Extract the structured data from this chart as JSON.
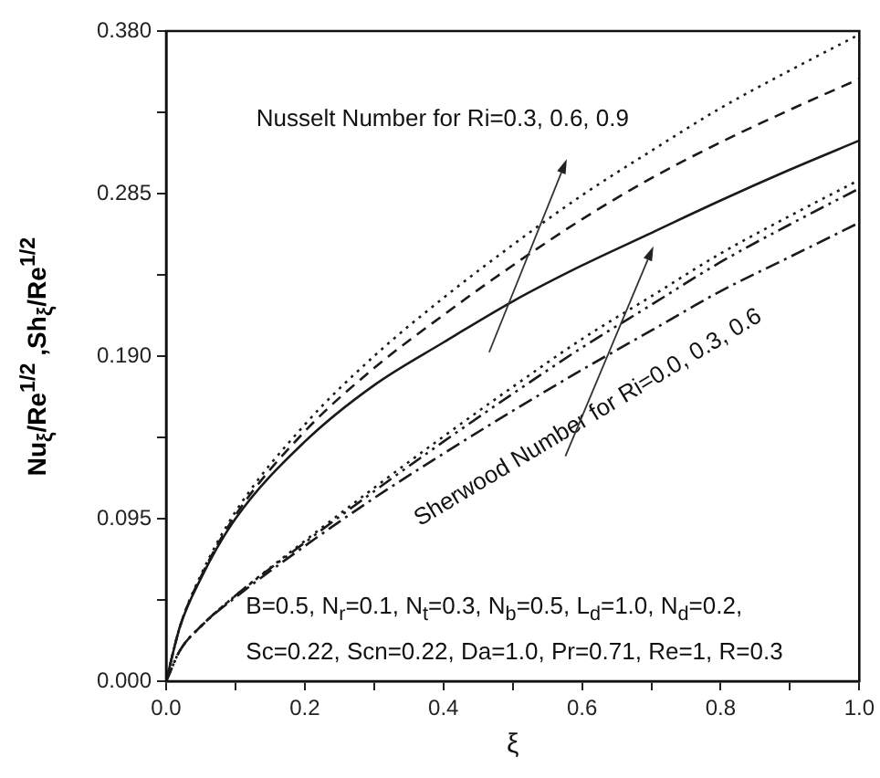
{
  "chart_data": {
    "type": "line",
    "xlabel": "ξ",
    "ylabel": "Nu$_{ξ}$/Re$^{1/2}$ ,Sh$_{ξ}$/Re$^{1/2}$",
    "x": [
      0,
      0.02,
      0.05,
      0.1,
      0.2,
      0.3,
      0.4,
      0.5,
      0.6,
      0.7,
      0.8,
      0.9,
      1.0
    ],
    "series": [
      {
        "color": "#1a1a1a",
        "line_style": "solid",
        "values": [
          0,
          0.032,
          0.06,
          0.095,
          0.14,
          0.173,
          0.198,
          0.222,
          0.243,
          0.262,
          0.281,
          0.299,
          0.316
        ]
      },
      {
        "color": "#1a1a1a",
        "line_style": "dashed",
        "values": [
          0,
          0.032,
          0.061,
          0.097,
          0.146,
          0.183,
          0.214,
          0.243,
          0.27,
          0.294,
          0.315,
          0.334,
          0.352
        ]
      },
      {
        "color": "#1a1a1a",
        "line_style": "dotted",
        "values": [
          0,
          0.032,
          0.062,
          0.099,
          0.15,
          0.19,
          0.224,
          0.255,
          0.284,
          0.31,
          0.335,
          0.357,
          0.378
        ]
      },
      {
        "color": "#1a1a1a",
        "line_style": "dotted",
        "values": [
          0,
          0.018,
          0.032,
          0.05,
          0.082,
          0.113,
          0.143,
          0.172,
          0.2,
          0.225,
          0.25,
          0.272,
          0.293
        ]
      },
      {
        "color": "#1a1a1a",
        "line_style": "dashdotdot",
        "values": [
          0,
          0.018,
          0.032,
          0.05,
          0.081,
          0.111,
          0.14,
          0.168,
          0.195,
          0.22,
          0.245,
          0.267,
          0.288
        ]
      },
      {
        "color": "#1a1a1a",
        "line_style": "dashdot",
        "values": [
          0,
          0.018,
          0.032,
          0.049,
          0.079,
          0.107,
          0.133,
          0.158,
          0.182,
          0.205,
          0.228,
          0.248,
          0.268
        ]
      }
    ],
    "xlim": [
      0,
      1.0
    ],
    "xticks": [
      {
        "value": 0,
        "label": "0.0"
      },
      {
        "value": 0.1,
        "label": null
      },
      {
        "value": 0.2,
        "label": "0.2"
      },
      {
        "value": 0.3,
        "label": null
      },
      {
        "value": 0.4,
        "label": "0.4"
      },
      {
        "value": 0.5,
        "label": null
      },
      {
        "value": 0.6,
        "label": "0.6"
      },
      {
        "value": 0.7,
        "label": null
      },
      {
        "value": 0.8,
        "label": "0.8"
      },
      {
        "value": 0.9,
        "label": null
      },
      {
        "value": 1.0,
        "label": "1.0"
      }
    ],
    "ylim": [
      0,
      0.38
    ],
    "yticks": [
      {
        "value": 0,
        "label": "0.000"
      },
      {
        "value": 0.0475,
        "label": null
      },
      {
        "value": 0.095,
        "label": "0.095"
      },
      {
        "value": 0.1425,
        "label": null
      },
      {
        "value": 0.19,
        "label": "0.190"
      },
      {
        "value": 0.2375,
        "label": null
      },
      {
        "value": 0.285,
        "label": "0.285"
      },
      {
        "value": 0.3325,
        "label": null
      },
      {
        "value": 0.38,
        "label": "0.380"
      }
    ],
    "grid": false,
    "legend": false,
    "marker": "none",
    "annotations": [
      "Nusselt Number for Ri=0.3, 0.6, 0.9",
      "Sherwood Number for Ri=0.0, 0.3, 0.6",
      "B=0.5, N$_{r}$=0.1, N$_{t}$=0.3, N$_{b}$=0.5, L$_{d}$=1.0, N$_{d}$=0.2,",
      "Sc=0.22, Scn=0.22, Da=1.0, Pr=0.71, Re=1, R=0.3"
    ]
  }
}
